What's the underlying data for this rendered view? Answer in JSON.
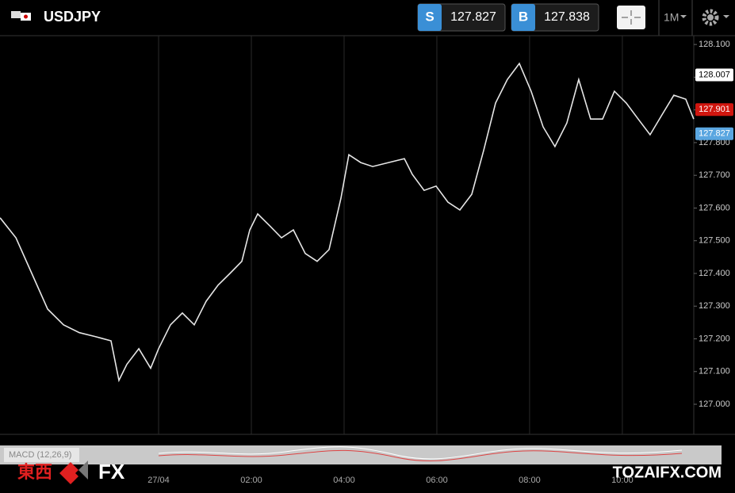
{
  "header": {
    "symbol": "USDJPY",
    "sell": {
      "label": "S",
      "price": "127.827"
    },
    "buy": {
      "label": "B",
      "price": "127.838"
    },
    "timeframe": "1M"
  },
  "chart_data": {
    "type": "line",
    "color": "#e6e6e6",
    "x": [
      -3.419,
      -3.077,
      -2.735,
      -2.393,
      -2.051,
      -1.709,
      -1.368,
      -1.026,
      -0.855,
      -0.684,
      -0.427,
      -0.171,
      0,
      0.256,
      0.513,
      0.769,
      1.026,
      1.282,
      1.538,
      1.795,
      1.966,
      2.137,
      2.393,
      2.65,
      2.906,
      3.162,
      3.419,
      3.675,
      3.932,
      4.103,
      4.359,
      4.615,
      4.957,
      5.299,
      5.47,
      5.726,
      5.983,
      6.239,
      6.496,
      6.752,
      7.009,
      7.265,
      7.521,
      7.778,
      8.034,
      8.291,
      8.547,
      8.803,
      9.06,
      9.316,
      9.573,
      9.829,
      10.085,
      10.342,
      10.598,
      10.855,
      11.111,
      11.368,
      11.538
    ],
    "values": [
      127.57,
      127.509,
      127.4,
      127.291,
      127.243,
      127.219,
      127.207,
      127.194,
      127.073,
      127.122,
      127.17,
      127.11,
      127.17,
      127.243,
      127.279,
      127.243,
      127.315,
      127.364,
      127.4,
      127.437,
      127.533,
      127.582,
      127.546,
      127.509,
      127.533,
      127.461,
      127.437,
      127.473,
      127.63,
      127.763,
      127.739,
      127.727,
      127.739,
      127.751,
      127.703,
      127.654,
      127.667,
      127.618,
      127.594,
      127.642,
      127.776,
      127.921,
      127.993,
      128.042,
      127.957,
      127.848,
      127.788,
      127.86,
      127.993,
      127.872,
      127.872,
      127.957,
      127.921,
      127.872,
      127.824,
      127.885,
      127.945,
      127.933,
      127.872
    ],
    "xlim": [
      -3.42,
      11.54
    ],
    "xticks": [
      {
        "value": 0,
        "label": "27/04"
      },
      {
        "value": 2,
        "label": "02:00"
      },
      {
        "value": 4,
        "label": "04:00"
      },
      {
        "value": 6,
        "label": "06:00"
      },
      {
        "value": 8,
        "label": "08:00"
      },
      {
        "value": 10,
        "label": "10:00"
      }
    ],
    "ylim": [
      126.908,
      128.127
    ],
    "yticks": [
      {
        "value": 127.0,
        "label": "127.000"
      },
      {
        "value": 127.1,
        "label": "127.100"
      },
      {
        "value": 127.2,
        "label": "127.200"
      },
      {
        "value": 127.3,
        "label": "127.300"
      },
      {
        "value": 127.4,
        "label": "127.400"
      },
      {
        "value": 127.5,
        "label": "127.500"
      },
      {
        "value": 127.6,
        "label": "127.600"
      },
      {
        "value": 127.7,
        "label": "127.700"
      },
      {
        "value": 127.8,
        "label": "127.800"
      },
      {
        "value": 127.9,
        "label": "127.900"
      },
      {
        "value": 128.0,
        "label": "128.000"
      },
      {
        "value": 128.1,
        "label": "128.100"
      }
    ],
    "xgrid": true,
    "price_tags": [
      {
        "value": 128.007,
        "color": "#ffffff"
      },
      {
        "value": 127.901,
        "color": "#d0160f"
      },
      {
        "value": 127.827,
        "color": "#5aa6e0"
      }
    ]
  },
  "indicator": "MACD (12,26,9)",
  "watermark": {
    "logo_cjk": "東西",
    "logo_fx": "FX",
    "site": "TOZAIFX.COM"
  }
}
